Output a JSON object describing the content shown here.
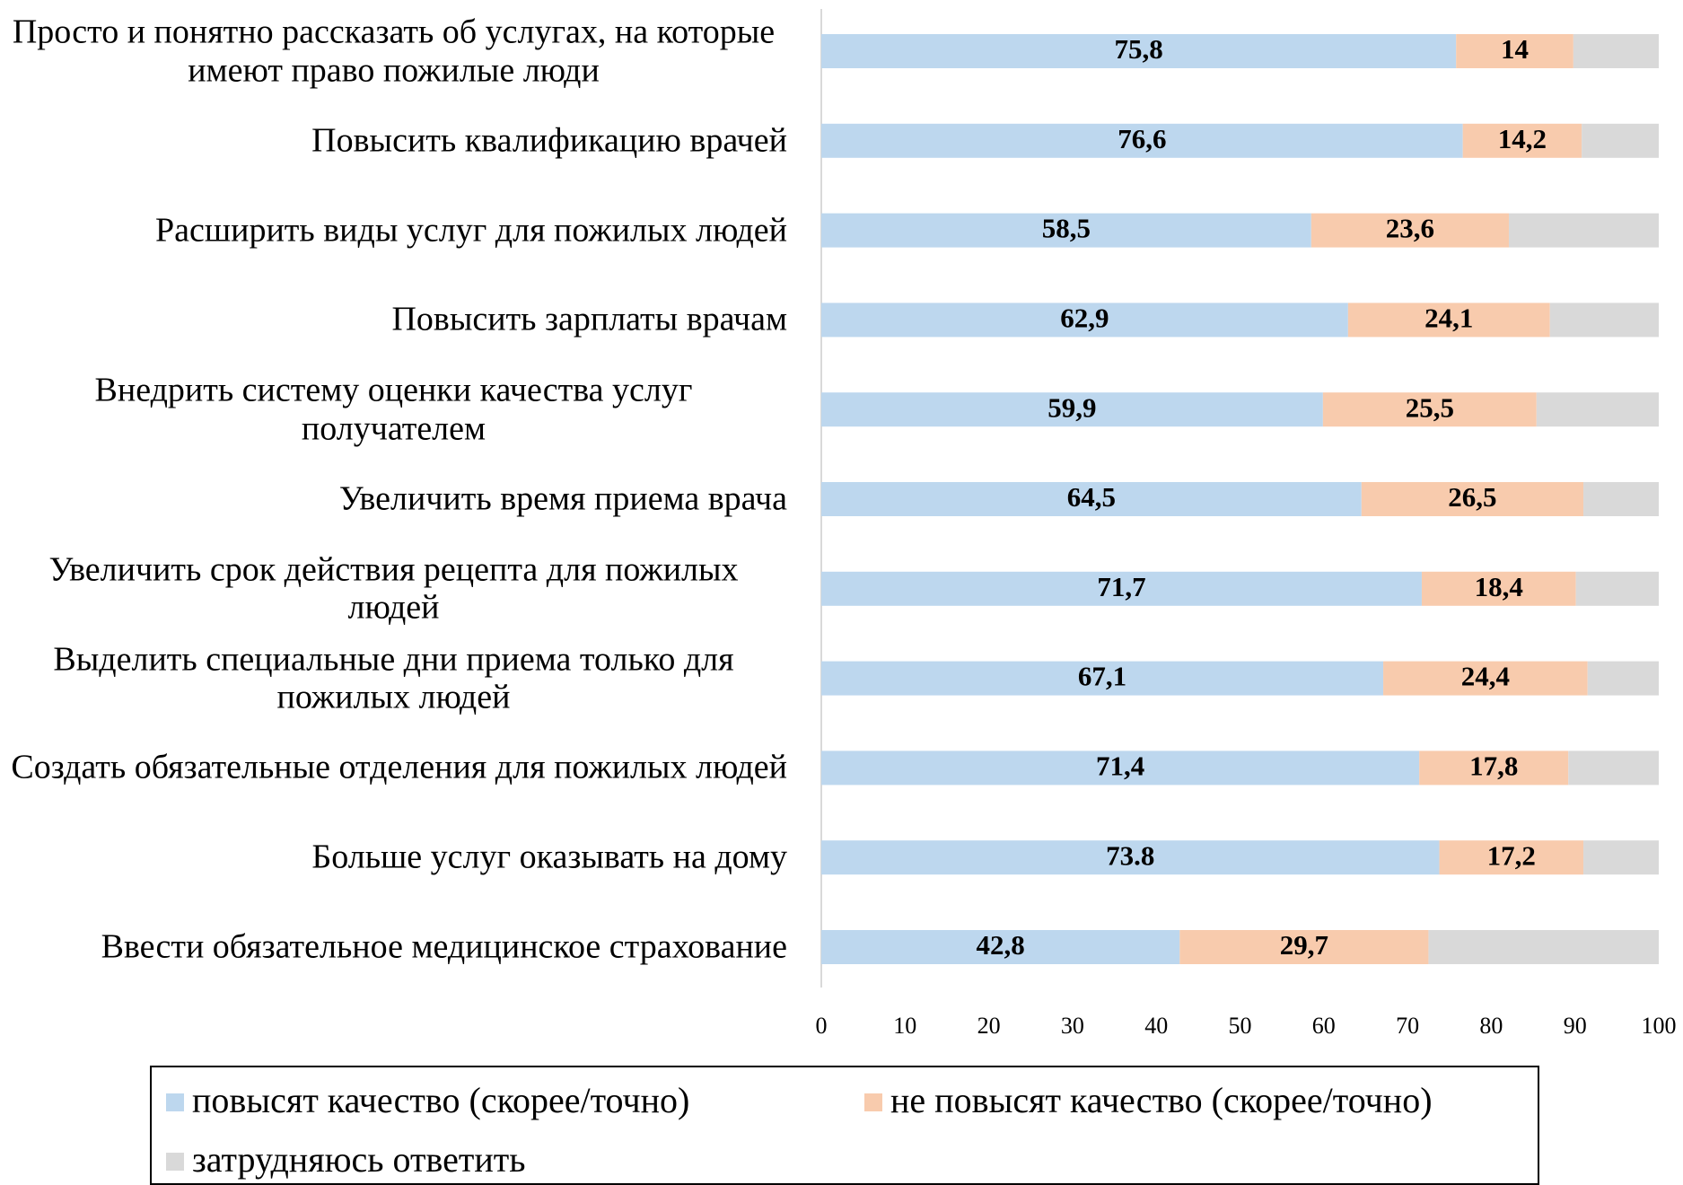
{
  "chart_data": {
    "type": "stacked_bar_horizontal",
    "categories": [
      "Просто и понятно рассказать об услугах, на которые имеют право пожилые люди",
      "Повысить квалификацию врачей",
      "Расширить виды услуг для пожилых людей",
      "Повысить зарплаты врачам",
      "Внедрить систему оценки качества услуг получателем",
      "Увеличить время приема врача",
      "Увеличить срок действия рецепта для пожилых людей",
      "Выделить специальные дни приема только для пожилых людей",
      "Создать обязательные отделения для пожилых людей",
      "Больше услуг оказывать на дому",
      "Ввести обязательное медицинское страхование"
    ],
    "series": [
      {
        "name": "повысят качество (скорее/точно)",
        "color": "#bdd7ee",
        "values": [
          75.8,
          76.6,
          58.5,
          62.9,
          59.9,
          64.5,
          71.7,
          67.1,
          71.4,
          73.8,
          42.8
        ],
        "value_labels": [
          "75,8",
          "76,6",
          "58,5",
          "62,9",
          "59,9",
          "64,5",
          "71,7",
          "67,1",
          "71,4",
          "73.8",
          "42,8"
        ]
      },
      {
        "name": "не повысят качество (скорее/точно)",
        "color": "#f8cbad",
        "values": [
          14,
          14.2,
          23.6,
          24.1,
          25.5,
          26.5,
          18.4,
          24.4,
          17.8,
          17.2,
          29.7
        ],
        "value_labels": [
          "14",
          "14,2",
          "23,6",
          "24,1",
          "25,5",
          "26,5",
          "18,4",
          "24,4",
          "17,8",
          "17,2",
          "29,7"
        ]
      },
      {
        "name": "затрудняюсь ответить",
        "color": "#d9d9d9",
        "values": [
          10.2,
          9.2,
          17.9,
          13,
          14.6,
          9,
          9.9,
          8.5,
          10.8,
          9,
          27.5
        ]
      }
    ],
    "xlim": [
      0,
      100
    ],
    "xticks": [
      0,
      10,
      20,
      30,
      40,
      50,
      60,
      70,
      80,
      90,
      100
    ],
    "grid": false,
    "legend": "bottom"
  }
}
